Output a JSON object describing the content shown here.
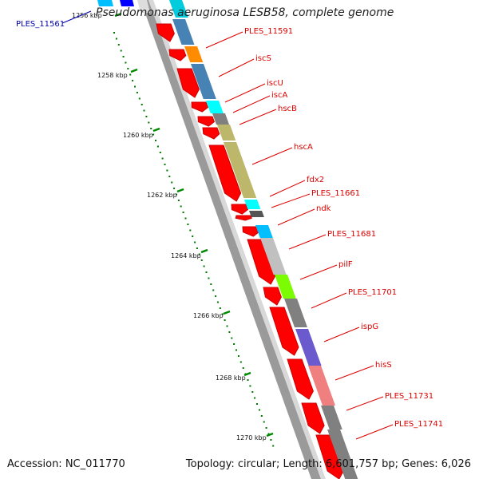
{
  "title": "Pseudomonas aeruginosa LESB58, complete genome",
  "footer": {
    "accession": "Accession: NC_011770",
    "topology": "Topology: circular; Length: 6,601,757 bp; Genes: 6,026"
  },
  "kbp_labels": [
    "1256 kbp",
    "1258 kbp",
    "1260 kbp",
    "1262 kbp",
    "1264 kbp",
    "1266 kbp",
    "1268 kbp",
    "1270 kbp"
  ],
  "gene_labels": [
    {
      "text": "PLES_11561",
      "color": "#0000aa"
    },
    {
      "text": "PLES_11591",
      "color": "#dd0000"
    },
    {
      "text": "iscS",
      "color": "#dd0000"
    },
    {
      "text": "iscU",
      "color": "#dd0000"
    },
    {
      "text": "iscA",
      "color": "#dd0000"
    },
    {
      "text": "hscB",
      "color": "#dd0000"
    },
    {
      "text": "hscA",
      "color": "#dd0000"
    },
    {
      "text": "fdx2",
      "color": "#dd0000"
    },
    {
      "text": "PLES_11661",
      "color": "#dd0000"
    },
    {
      "text": "ndk",
      "color": "#dd0000"
    },
    {
      "text": "PLES_11681",
      "color": "#dd0000"
    },
    {
      "text": "pilF",
      "color": "#dd0000"
    },
    {
      "text": "PLES_11701",
      "color": "#dd0000"
    },
    {
      "text": "ispG",
      "color": "#dd0000"
    },
    {
      "text": "hisS",
      "color": "#dd0000"
    },
    {
      "text": "PLES_11731",
      "color": "#dd0000"
    },
    {
      "text": "PLES_11741",
      "color": "#dd0000"
    }
  ],
  "cog_colors": [
    "#00ccdd",
    "#4682b4",
    "#ff8c00",
    "#4682b4",
    "#00ffff",
    "#808080",
    "#bdb76b",
    "#bdb76b",
    "#00ffff",
    "#555555",
    "#00bfff",
    "#c0c0c0",
    "#7cfc00",
    "#808080",
    "#6a5acd",
    "#f08080",
    "#808080",
    "#808080"
  ],
  "colors": {
    "gene_arrow": "#ff0000",
    "gene_arrow_edge": "#cc0000",
    "backbone": "#888888",
    "tick_dots": "#007700"
  }
}
